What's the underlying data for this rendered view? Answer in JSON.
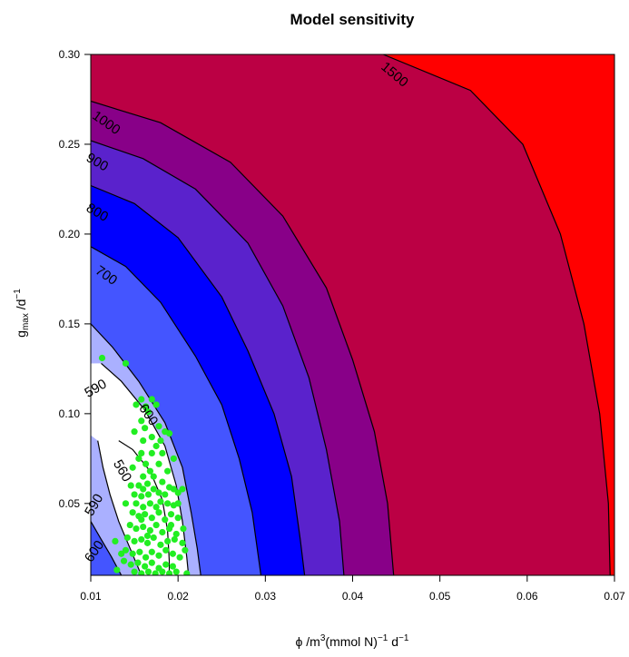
{
  "chart_data": {
    "type": "contour",
    "title": "Model sensitivity",
    "xlabel": {
      "base": "ϕ /m",
      "sup1": "3",
      "mid": "(mmol N)",
      "sup2": "−1",
      "tail": " d",
      "sup3": "−1"
    },
    "ylabel": {
      "base": "g",
      "sub": "max",
      "mid": " /d",
      "sup": "−1"
    },
    "xlim": [
      0.01,
      0.07
    ],
    "ylim": [
      0.01,
      0.3
    ],
    "x_ticks": [
      "0.01",
      "0.02",
      "0.03",
      "0.04",
      "0.05",
      "0.06",
      "0.07"
    ],
    "y_ticks": [
      "0.05",
      "0.10",
      "0.15",
      "0.20",
      "0.25",
      "0.30"
    ],
    "x_tick_values": [
      0.01,
      0.02,
      0.03,
      0.04,
      0.05,
      0.06,
      0.07
    ],
    "y_tick_values": [
      0.05,
      0.1,
      0.15,
      0.2,
      0.25,
      0.3
    ],
    "bands": [
      {
        "level": 1500,
        "color": "#ff0000"
      },
      {
        "level": 1000,
        "color": "#bb0044"
      },
      {
        "level": 900,
        "color": "#880088"
      },
      {
        "level": 800,
        "color": "#5a22cc"
      },
      {
        "level": 700,
        "color": "#0000ff"
      },
      {
        "level": 600,
        "color": "#4455ff"
      },
      {
        "level": 590,
        "color": "#aab0ff"
      },
      {
        "level": 560,
        "color": "#ffffff"
      }
    ],
    "contours": [
      {
        "level": 1500,
        "points": [
          [
            0.0435,
            0.3
          ],
          [
            0.0535,
            0.28
          ],
          [
            0.0595,
            0.25
          ],
          [
            0.0638,
            0.2
          ],
          [
            0.0665,
            0.15
          ],
          [
            0.0683,
            0.1
          ],
          [
            0.0693,
            0.05
          ],
          [
            0.0695,
            0.01
          ]
        ]
      },
      {
        "level": 1000,
        "points": [
          [
            0.01,
            0.274
          ],
          [
            0.018,
            0.262
          ],
          [
            0.026,
            0.24
          ],
          [
            0.032,
            0.21
          ],
          [
            0.037,
            0.17
          ],
          [
            0.04,
            0.13
          ],
          [
            0.0425,
            0.09
          ],
          [
            0.044,
            0.05
          ],
          [
            0.0447,
            0.01
          ]
        ]
      },
      {
        "level": 900,
        "points": [
          [
            0.01,
            0.252
          ],
          [
            0.016,
            0.242
          ],
          [
            0.022,
            0.225
          ],
          [
            0.028,
            0.195
          ],
          [
            0.032,
            0.16
          ],
          [
            0.035,
            0.12
          ],
          [
            0.037,
            0.08
          ],
          [
            0.0385,
            0.04
          ],
          [
            0.039,
            0.01
          ]
        ]
      },
      {
        "level": 800,
        "points": [
          [
            0.01,
            0.227
          ],
          [
            0.015,
            0.217
          ],
          [
            0.02,
            0.198
          ],
          [
            0.025,
            0.165
          ],
          [
            0.028,
            0.135
          ],
          [
            0.031,
            0.1
          ],
          [
            0.033,
            0.065
          ],
          [
            0.034,
            0.03
          ],
          [
            0.0345,
            0.01
          ]
        ]
      },
      {
        "level": 700,
        "points": [
          [
            0.01,
            0.193
          ],
          [
            0.014,
            0.182
          ],
          [
            0.018,
            0.162
          ],
          [
            0.022,
            0.132
          ],
          [
            0.025,
            0.105
          ],
          [
            0.027,
            0.075
          ],
          [
            0.0285,
            0.045
          ],
          [
            0.0295,
            0.01
          ]
        ]
      },
      {
        "level": 600,
        "points": [
          [
            0.01,
            0.15
          ],
          [
            0.0125,
            0.137
          ],
          [
            0.0155,
            0.118
          ],
          [
            0.0185,
            0.095
          ],
          [
            0.0205,
            0.07
          ],
          [
            0.0215,
            0.045
          ],
          [
            0.0222,
            0.025
          ],
          [
            0.0226,
            0.01
          ]
        ]
      },
      {
        "level": 590,
        "points": [
          [
            0.0112,
            0.128
          ],
          [
            0.0135,
            0.118
          ],
          [
            0.0162,
            0.102
          ],
          [
            0.0185,
            0.082
          ],
          [
            0.0198,
            0.06
          ],
          [
            0.0205,
            0.04
          ],
          [
            0.021,
            0.02
          ],
          [
            0.0212,
            0.01
          ]
        ]
      },
      {
        "level": 560,
        "points": [
          [
            0.0132,
            0.085
          ],
          [
            0.0148,
            0.08
          ],
          [
            0.0168,
            0.068
          ],
          [
            0.0182,
            0.052
          ],
          [
            0.0188,
            0.035
          ],
          [
            0.019,
            0.018
          ],
          [
            0.019,
            0.01
          ]
        ]
      },
      {
        "level": 590,
        "points": [
          [
            0.0108,
            0.085
          ],
          [
            0.0114,
            0.07
          ],
          [
            0.0122,
            0.055
          ],
          [
            0.0132,
            0.04
          ],
          [
            0.0145,
            0.025
          ],
          [
            0.0158,
            0.01
          ]
        ]
      },
      {
        "level": 600,
        "points": [
          [
            0.01,
            0.04
          ],
          [
            0.0112,
            0.03
          ],
          [
            0.0124,
            0.02
          ],
          [
            0.0135,
            0.01
          ]
        ]
      }
    ],
    "contour_labels": [
      {
        "text": "1500",
        "x": 0.0445,
        "y": 0.287,
        "angle": 40
      },
      {
        "text": "1000",
        "x": 0.0115,
        "y": 0.26,
        "angle": 35
      },
      {
        "text": "900",
        "x": 0.0105,
        "y": 0.238,
        "angle": 30
      },
      {
        "text": "800",
        "x": 0.0105,
        "y": 0.21,
        "angle": 30
      },
      {
        "text": "700",
        "x": 0.0115,
        "y": 0.175,
        "angle": 35
      },
      {
        "text": "590",
        "x": 0.0108,
        "y": 0.112,
        "angle": -30
      },
      {
        "text": "600",
        "x": 0.0162,
        "y": 0.098,
        "angle": 55
      },
      {
        "text": "560",
        "x": 0.0132,
        "y": 0.067,
        "angle": 60
      },
      {
        "text": "590",
        "x": 0.0108,
        "y": 0.048,
        "angle": -60
      },
      {
        "text": "600",
        "x": 0.0108,
        "y": 0.022,
        "angle": -55
      }
    ],
    "points": [
      [
        0.0113,
        0.131
      ],
      [
        0.014,
        0.128
      ],
      [
        0.0152,
        0.105
      ],
      [
        0.0158,
        0.108
      ],
      [
        0.0163,
        0.104
      ],
      [
        0.017,
        0.108
      ],
      [
        0.0175,
        0.105
      ],
      [
        0.0166,
        0.101
      ],
      [
        0.0158,
        0.096
      ],
      [
        0.015,
        0.09
      ],
      [
        0.0162,
        0.092
      ],
      [
        0.0178,
        0.093
      ],
      [
        0.0185,
        0.09
      ],
      [
        0.019,
        0.089
      ],
      [
        0.017,
        0.087
      ],
      [
        0.0175,
        0.082
      ],
      [
        0.018,
        0.085
      ],
      [
        0.0158,
        0.078
      ],
      [
        0.0163,
        0.072
      ],
      [
        0.0168,
        0.068
      ],
      [
        0.016,
        0.065
      ],
      [
        0.0172,
        0.065
      ],
      [
        0.0165,
        0.061
      ],
      [
        0.0155,
        0.06
      ],
      [
        0.016,
        0.058
      ],
      [
        0.015,
        0.055
      ],
      [
        0.0158,
        0.054
      ],
      [
        0.0166,
        0.055
      ],
      [
        0.0172,
        0.058
      ],
      [
        0.0178,
        0.056
      ],
      [
        0.0185,
        0.055
      ],
      [
        0.019,
        0.059
      ],
      [
        0.0195,
        0.058
      ],
      [
        0.02,
        0.056
      ],
      [
        0.0205,
        0.058
      ],
      [
        0.0152,
        0.05
      ],
      [
        0.016,
        0.048
      ],
      [
        0.0168,
        0.05
      ],
      [
        0.0175,
        0.048
      ],
      [
        0.018,
        0.051
      ],
      [
        0.0188,
        0.05
      ],
      [
        0.0195,
        0.049
      ],
      [
        0.0148,
        0.045
      ],
      [
        0.0155,
        0.043
      ],
      [
        0.0162,
        0.044
      ],
      [
        0.017,
        0.042
      ],
      [
        0.0178,
        0.045
      ],
      [
        0.0185,
        0.041
      ],
      [
        0.0192,
        0.044
      ],
      [
        0.02,
        0.042
      ],
      [
        0.0145,
        0.038
      ],
      [
        0.0152,
        0.036
      ],
      [
        0.016,
        0.037
      ],
      [
        0.0168,
        0.035
      ],
      [
        0.0175,
        0.038
      ],
      [
        0.0182,
        0.034
      ],
      [
        0.019,
        0.036
      ],
      [
        0.0198,
        0.033
      ],
      [
        0.0142,
        0.031
      ],
      [
        0.015,
        0.029
      ],
      [
        0.0158,
        0.03
      ],
      [
        0.0165,
        0.028
      ],
      [
        0.0172,
        0.031
      ],
      [
        0.018,
        0.027
      ],
      [
        0.0188,
        0.029
      ],
      [
        0.0196,
        0.03
      ],
      [
        0.0205,
        0.028
      ],
      [
        0.0128,
        0.029
      ],
      [
        0.014,
        0.024
      ],
      [
        0.0148,
        0.022
      ],
      [
        0.0156,
        0.023
      ],
      [
        0.0163,
        0.02
      ],
      [
        0.017,
        0.023
      ],
      [
        0.0178,
        0.021
      ],
      [
        0.0186,
        0.024
      ],
      [
        0.0194,
        0.022
      ],
      [
        0.0202,
        0.02
      ],
      [
        0.0208,
        0.024
      ],
      [
        0.0138,
        0.018
      ],
      [
        0.0146,
        0.016
      ],
      [
        0.0154,
        0.017
      ],
      [
        0.0162,
        0.015
      ],
      [
        0.017,
        0.017
      ],
      [
        0.0178,
        0.014
      ],
      [
        0.0186,
        0.016
      ],
      [
        0.0194,
        0.015
      ],
      [
        0.015,
        0.012
      ],
      [
        0.0158,
        0.011
      ],
      [
        0.0166,
        0.012
      ],
      [
        0.0174,
        0.011
      ],
      [
        0.0182,
        0.012
      ],
      [
        0.019,
        0.011
      ],
      [
        0.0198,
        0.012
      ],
      [
        0.021,
        0.011
      ],
      [
        0.0135,
        0.022
      ],
      [
        0.013,
        0.013
      ],
      [
        0.016,
        0.085
      ],
      [
        0.0148,
        0.07
      ],
      [
        0.0155,
        0.075
      ],
      [
        0.0195,
        0.075
      ],
      [
        0.0188,
        0.068
      ],
      [
        0.0182,
        0.062
      ],
      [
        0.0178,
        0.072
      ],
      [
        0.0192,
        0.038
      ],
      [
        0.0206,
        0.036
      ],
      [
        0.014,
        0.05
      ],
      [
        0.0146,
        0.06
      ],
      [
        0.02,
        0.05
      ],
      [
        0.017,
        0.078
      ],
      [
        0.0182,
        0.078
      ],
      [
        0.0165,
        0.032
      ],
      [
        0.0158,
        0.041
      ]
    ],
    "point_color": "#22ee22"
  }
}
